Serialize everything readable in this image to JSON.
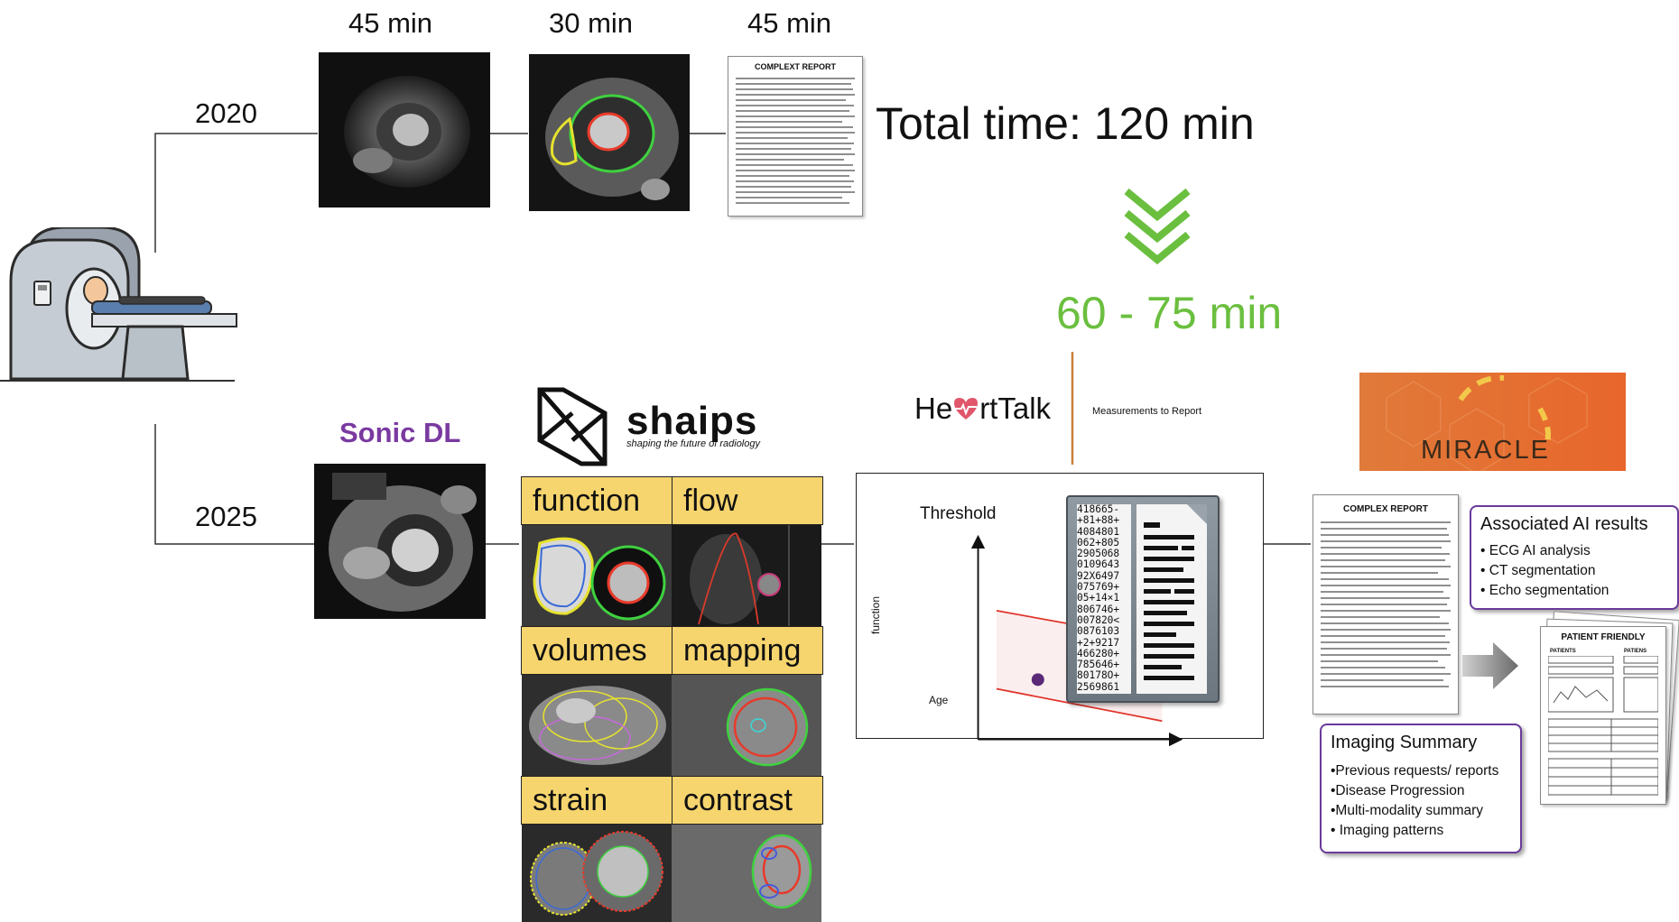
{
  "years": {
    "top": "2020",
    "bottom": "2025"
  },
  "top_row": {
    "times": [
      "45 min",
      "30 min",
      "45 min"
    ],
    "report_title": "COMPLEXT REPORT",
    "total_label": "Total time: 120 min"
  },
  "reduced_time": "60 - 75 min",
  "sonic_label": "Sonic DL",
  "shaips": {
    "name": "shaips",
    "tagline": "shaping the future of radiology"
  },
  "tiles": [
    "function",
    "flow",
    "volumes",
    "mapping",
    "strain",
    "contrast"
  ],
  "heartalk": {
    "name_before": "He",
    "name_after": "rtTalk",
    "caption": "Measurements to Report"
  },
  "threshold_chart": {
    "title": "Threshold",
    "xlabel": "Age",
    "ylabel": "function"
  },
  "data_lines": [
    "418665-",
    "+81+88+",
    "4084801",
    "062+805",
    "2905068",
    "0109643",
    "92X6497",
    "075769+",
    "05+14×1",
    "806746+",
    "007820<",
    "0876103",
    "+2+9217",
    "466280+",
    "785646+",
    "80178O+",
    "2569861"
  ],
  "miracle": "MIRACLE",
  "final_report": {
    "title": "COMPLEX REPORT",
    "ai_card": {
      "title": "Associated AI results",
      "items": [
        "• ECG AI analysis",
        "• CT segmentation",
        "• Echo segmentation"
      ]
    },
    "summary_card": {
      "title": "Imaging Summary",
      "items": [
        "•Previous requests/ reports",
        "•Disease Progression",
        "•Multi-modality summary",
        "• Imaging patterns"
      ]
    },
    "patient_friendly": {
      "title": "PATIENT FRIENDLY",
      "col1": "PATIENTS",
      "col2": "PATIENS"
    }
  },
  "colors": {
    "accent_green": "#6bbf3f",
    "sonic_purple": "#7a3aa0",
    "tile_yellow": "#f7d56e",
    "miracle_orange": "#e8762f",
    "card_purple": "#6a3a9a"
  }
}
